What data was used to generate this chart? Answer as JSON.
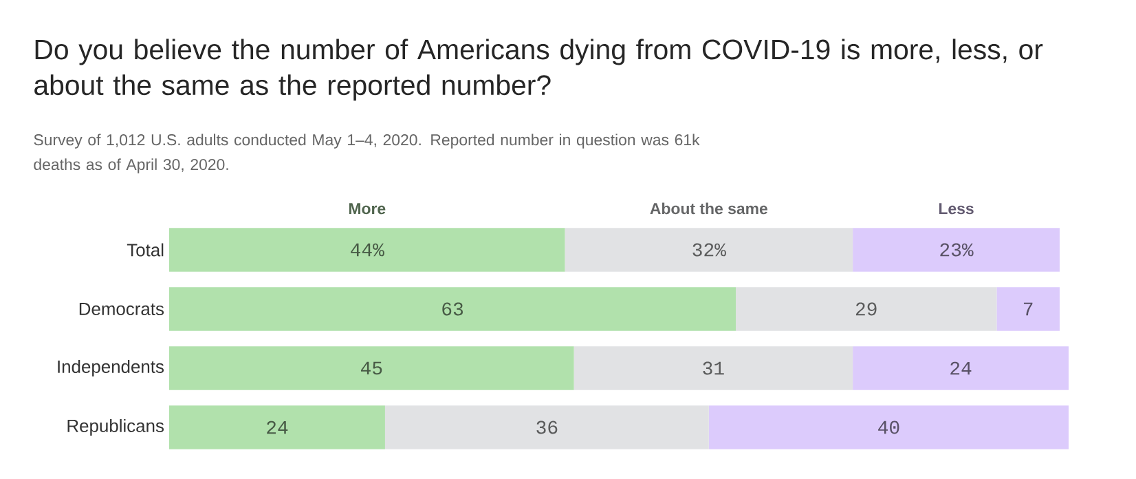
{
  "chart_data": {
    "type": "bar",
    "orientation": "horizontal",
    "stacked": true,
    "legend": "top",
    "title": "Do you believe the number of Americans dying from COVID-19 is more, less, or about the same as the reported number?",
    "subtitle": "Survey of 1,012 U.S. adults conducted May 1–4, 2020. Reported number in question was 61k deaths as of April 30, 2020.",
    "categories": [
      "Total",
      "Democrats",
      "Independents",
      "Republicans"
    ],
    "series": [
      {
        "name": "More",
        "color": "#b1e1ac",
        "values": [
          44,
          63,
          45,
          24
        ],
        "value_labels": [
          "44%",
          "63",
          "45",
          "24"
        ]
      },
      {
        "name": "About the same",
        "color": "#e1e2e4",
        "values": [
          32,
          29,
          31,
          36
        ],
        "value_labels": [
          "32%",
          "29",
          "31",
          "36"
        ]
      },
      {
        "name": "Less",
        "color": "#dccbfc",
        "values": [
          23,
          7,
          24,
          40
        ],
        "value_labels": [
          "23%",
          "7",
          "24",
          "40"
        ]
      }
    ]
  }
}
